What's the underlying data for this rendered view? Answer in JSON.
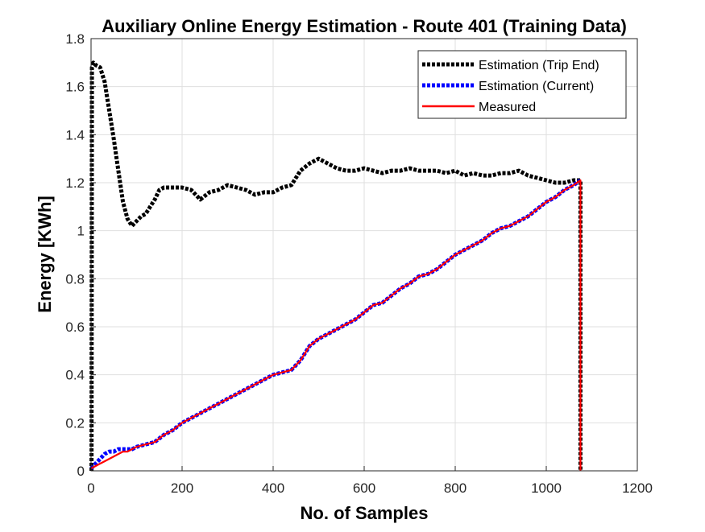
{
  "chart_data": {
    "type": "line",
    "title": "Auxiliary Online Energy Estimation - Route 401 (Training Data)",
    "xlabel": "No. of Samples",
    "ylabel": "Energy [KWh]",
    "xlim": [
      0,
      1200
    ],
    "ylim": [
      0,
      1.8
    ],
    "xticks": [
      0,
      200,
      400,
      600,
      800,
      1000,
      1200
    ],
    "yticks": [
      0,
      0.2,
      0.4,
      0.6,
      0.8,
      1,
      1.2,
      1.4,
      1.6,
      1.8
    ],
    "xtick_labels": [
      "0",
      "200",
      "400",
      "600",
      "800",
      "1000",
      "1200"
    ],
    "ytick_labels": [
      "0",
      "0.2",
      "0.4",
      "0.6",
      "0.8",
      "1",
      "1.2",
      "1.4",
      "1.6",
      "1.8"
    ],
    "grid": true,
    "legend_position": "top-right",
    "series": [
      {
        "name": "Estimation (Trip End)",
        "color": "#000000",
        "style": "dotted",
        "x": [
          1,
          2,
          5,
          10,
          20,
          30,
          40,
          50,
          60,
          70,
          80,
          90,
          100,
          110,
          120,
          130,
          140,
          150,
          160,
          180,
          200,
          220,
          240,
          260,
          280,
          300,
          320,
          340,
          360,
          380,
          400,
          420,
          440,
          460,
          480,
          500,
          520,
          540,
          560,
          580,
          600,
          620,
          640,
          660,
          680,
          700,
          720,
          740,
          760,
          780,
          800,
          820,
          840,
          860,
          880,
          900,
          920,
          940,
          960,
          980,
          1000,
          1020,
          1040,
          1060,
          1075,
          1075
        ],
        "y": [
          0,
          1.68,
          1.7,
          1.69,
          1.68,
          1.62,
          1.5,
          1.38,
          1.25,
          1.12,
          1.05,
          1.02,
          1.04,
          1.06,
          1.07,
          1.1,
          1.13,
          1.17,
          1.18,
          1.18,
          1.18,
          1.17,
          1.13,
          1.16,
          1.17,
          1.19,
          1.18,
          1.17,
          1.15,
          1.16,
          1.16,
          1.18,
          1.19,
          1.25,
          1.28,
          1.3,
          1.28,
          1.26,
          1.25,
          1.25,
          1.26,
          1.25,
          1.24,
          1.25,
          1.25,
          1.26,
          1.25,
          1.25,
          1.25,
          1.24,
          1.25,
          1.23,
          1.24,
          1.23,
          1.23,
          1.24,
          1.24,
          1.25,
          1.23,
          1.22,
          1.21,
          1.2,
          1.2,
          1.21,
          1.21,
          0
        ]
      },
      {
        "name": "Estimation (Current)",
        "color": "#0000ff",
        "style": "dotted",
        "x": [
          0,
          10,
          20,
          30,
          40,
          50,
          60,
          70,
          80,
          90,
          100,
          120,
          140,
          160,
          180,
          200,
          220,
          240,
          260,
          280,
          300,
          320,
          340,
          360,
          380,
          400,
          420,
          440,
          460,
          480,
          500,
          520,
          540,
          560,
          580,
          600,
          620,
          640,
          660,
          680,
          700,
          720,
          740,
          760,
          780,
          800,
          820,
          840,
          860,
          880,
          900,
          920,
          940,
          960,
          980,
          1000,
          1020,
          1040,
          1060,
          1075
        ],
        "y": [
          0.01,
          0.03,
          0.05,
          0.07,
          0.08,
          0.08,
          0.09,
          0.09,
          0.09,
          0.09,
          0.1,
          0.11,
          0.12,
          0.15,
          0.17,
          0.2,
          0.22,
          0.24,
          0.26,
          0.28,
          0.3,
          0.32,
          0.34,
          0.36,
          0.38,
          0.4,
          0.41,
          0.42,
          0.46,
          0.52,
          0.55,
          0.57,
          0.59,
          0.61,
          0.63,
          0.66,
          0.69,
          0.7,
          0.73,
          0.76,
          0.78,
          0.81,
          0.82,
          0.84,
          0.87,
          0.9,
          0.92,
          0.94,
          0.96,
          0.99,
          1.01,
          1.02,
          1.04,
          1.06,
          1.09,
          1.12,
          1.14,
          1.17,
          1.19,
          1.21
        ]
      },
      {
        "name": "Measured",
        "color": "#ff0000",
        "style": "solid",
        "x": [
          0,
          10,
          20,
          30,
          40,
          50,
          60,
          70,
          80,
          90,
          100,
          120,
          140,
          160,
          180,
          200,
          220,
          240,
          260,
          280,
          300,
          320,
          340,
          360,
          380,
          400,
          420,
          440,
          460,
          480,
          500,
          520,
          540,
          560,
          580,
          600,
          620,
          640,
          660,
          680,
          700,
          720,
          740,
          760,
          780,
          800,
          820,
          840,
          860,
          880,
          900,
          920,
          940,
          960,
          980,
          1000,
          1020,
          1040,
          1060,
          1075,
          1075
        ],
        "y": [
          0.01,
          0.02,
          0.03,
          0.04,
          0.05,
          0.06,
          0.07,
          0.08,
          0.08,
          0.09,
          0.1,
          0.11,
          0.12,
          0.15,
          0.17,
          0.2,
          0.22,
          0.24,
          0.26,
          0.28,
          0.3,
          0.32,
          0.34,
          0.36,
          0.38,
          0.4,
          0.41,
          0.42,
          0.46,
          0.52,
          0.55,
          0.57,
          0.59,
          0.61,
          0.63,
          0.66,
          0.69,
          0.7,
          0.73,
          0.76,
          0.78,
          0.81,
          0.82,
          0.84,
          0.87,
          0.9,
          0.92,
          0.94,
          0.96,
          0.99,
          1.01,
          1.02,
          1.04,
          1.06,
          1.09,
          1.12,
          1.14,
          1.17,
          1.19,
          1.21,
          0
        ]
      }
    ]
  }
}
